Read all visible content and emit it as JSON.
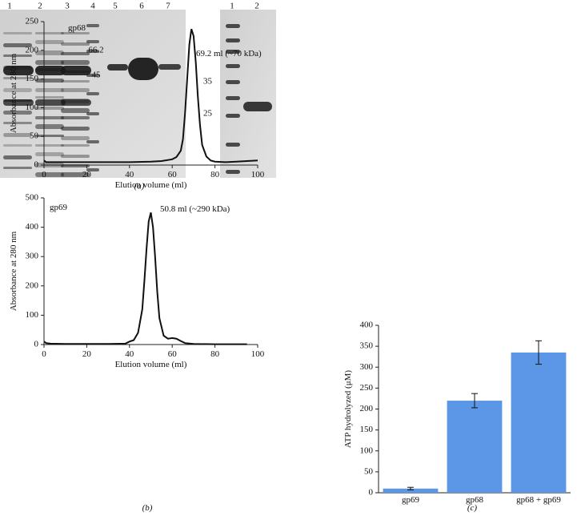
{
  "gels": {
    "left": {
      "lanes": [
        "1",
        "2",
        "3",
        "4",
        "5",
        "6",
        "7"
      ],
      "markers": [
        "66.2",
        "45"
      ]
    },
    "right": {
      "lanes": [
        "1",
        "2"
      ],
      "markers": [
        "35",
        "25"
      ]
    },
    "caption": "(a)"
  },
  "chart_data": [
    {
      "type": "line",
      "label": "gp68",
      "annotation": "69.2 ml (~70 kDa)",
      "x_label": "Elution volume (ml)",
      "y_label": "Absorbance at 280 nm",
      "color": "#111111",
      "x": [
        0,
        1,
        5,
        10,
        20,
        30,
        40,
        50,
        55,
        60,
        62,
        64,
        65,
        66,
        67,
        68,
        69,
        70,
        71,
        72,
        73,
        74,
        76,
        78,
        80,
        85,
        90,
        95,
        100
      ],
      "values": [
        8,
        5,
        5,
        5,
        5,
        5,
        5,
        6,
        7,
        10,
        14,
        25,
        45,
        90,
        150,
        210,
        237,
        225,
        180,
        120,
        70,
        35,
        15,
        8,
        6,
        5,
        6,
        7,
        8
      ],
      "xlim": [
        0,
        100
      ],
      "xticks": [
        0,
        20,
        40,
        60,
        80,
        100
      ],
      "ylim": [
        0,
        250
      ],
      "yticks": [
        0,
        50,
        100,
        150,
        200,
        250
      ]
    },
    {
      "type": "line",
      "label": "gp69",
      "annotation": "50.8 ml (~290 kDa)",
      "x_label": "Elution volume (ml)",
      "y_label": "Absorbance at 280 nm",
      "caption": "(b)",
      "color": "#111111",
      "x": [
        0,
        1,
        3,
        10,
        20,
        30,
        38,
        40,
        42,
        44,
        46,
        47,
        48,
        49,
        50,
        51,
        52,
        53,
        54,
        56,
        58,
        60,
        62,
        64,
        66,
        70,
        80,
        90,
        95
      ],
      "values": [
        10,
        5,
        3,
        2,
        2,
        2,
        3,
        10,
        15,
        40,
        120,
        220,
        330,
        420,
        450,
        400,
        300,
        180,
        90,
        30,
        20,
        22,
        20,
        12,
        5,
        2,
        1,
        1,
        1
      ],
      "xlim": [
        0,
        100
      ],
      "xticks": [
        0,
        20,
        40,
        60,
        80,
        100
      ],
      "ylim": [
        0,
        500
      ],
      "yticks": [
        0,
        100,
        200,
        300,
        400,
        500
      ]
    },
    {
      "type": "bar",
      "y_label": "ATP hydrolyzed (μM)",
      "caption": "(c)",
      "color": "#5b97e6",
      "categories": [
        "gp69",
        "gp68",
        "gp68 + gp69"
      ],
      "values": [
        10,
        220,
        335
      ],
      "errors": [
        3,
        17,
        28
      ],
      "ylim": [
        0,
        400
      ],
      "yticks": [
        0,
        50,
        100,
        150,
        200,
        250,
        300,
        350,
        400
      ]
    }
  ]
}
